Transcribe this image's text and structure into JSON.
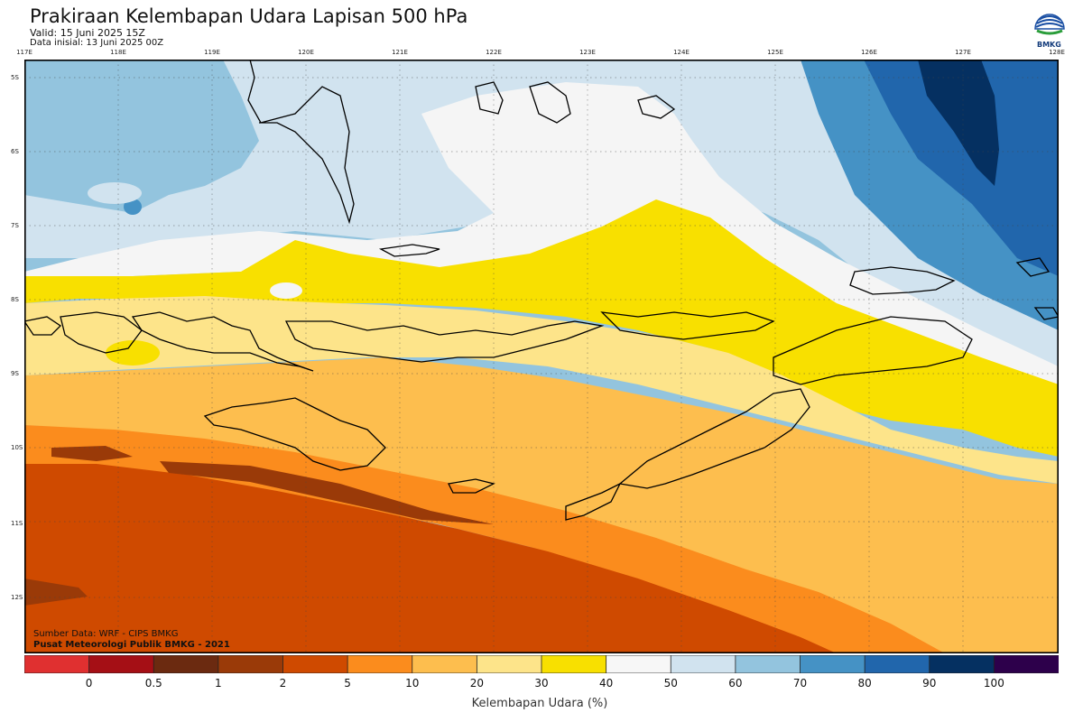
{
  "header": {
    "title": "Prakiraan Kelembapan Udara Lapisan 500 hPa",
    "valid": "Valid: 15 Juni 2025 15Z",
    "initial": "Data inisial: 13 Juni 2025 00Z"
  },
  "logo": {
    "text": "BMKG",
    "icon": "bmkg-logo-icon",
    "color": "#1a4fa3"
  },
  "map": {
    "lon_labels": [
      "117E",
      "118E",
      "119E",
      "120E",
      "121E",
      "122E",
      "123E",
      "124E",
      "125E",
      "126E",
      "127E",
      "128E"
    ],
    "lat_labels": [
      "5S",
      "6S",
      "7S",
      "8S",
      "9S",
      "10S",
      "11S",
      "12S"
    ],
    "lon_range": [
      117,
      128
    ],
    "lat_range": [
      -4.8,
      -12.8
    ],
    "gridlines": "dotted",
    "fill_colors": {
      "0-0.5": "#a50f15",
      "20-30": "#fde48a",
      "30-40": "#f8e000",
      "40-50": "#f5f5f5",
      "50-60": "#d1e3ef",
      "60-70": "#93c4de",
      "70-80": "#4592c5",
      "80-90": "#2166ac",
      "90-100": "#053061",
      "10-20": "#fdbe4e",
      "5-10": "#fb8c1d",
      "2-5": "#cf4a00",
      "1-2": "#9a3a08"
    }
  },
  "credits": {
    "source": "Sumber Data: WRF - CIPS BMKG",
    "center": "Pusat Meteorologi Publik BMKG - 2021"
  },
  "colorbar": {
    "labels": [
      "0",
      "0.5",
      "1",
      "2",
      "5",
      "10",
      "20",
      "30",
      "40",
      "50",
      "60",
      "70",
      "80",
      "90",
      "100"
    ],
    "colors": [
      "#e03030",
      "#a50f15",
      "#6b2a10",
      "#9a3a08",
      "#cf4a00",
      "#fb8c1d",
      "#fdbe4e",
      "#fde48a",
      "#f8e000",
      "#f7f7f7",
      "#d1e3ef",
      "#93c4de",
      "#4592c5",
      "#2166ac",
      "#053061",
      "#2d004b"
    ],
    "title": "Kelembapan Udara (%)"
  }
}
